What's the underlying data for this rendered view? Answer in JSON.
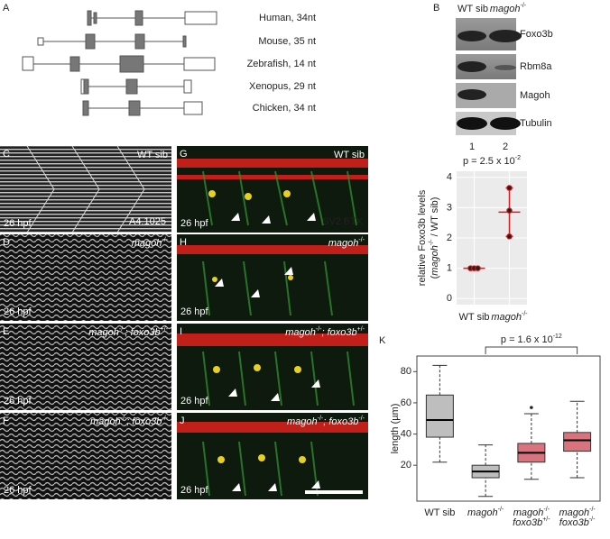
{
  "letters": [
    "A",
    "B",
    "C",
    "D",
    "E",
    "F",
    "G",
    "H",
    "I",
    "J",
    "K"
  ],
  "gene_structures": {
    "labels": [
      "Human, 34nt",
      "Mouse, 35 nt",
      "Zebrafish, 14 nt",
      "Xenopus, 29 nt",
      "Chicken, 34 nt"
    ]
  },
  "western_blot": {
    "lanes": [
      "WT sib",
      [
        {
          "i": "magoh"
        },
        {
          "sup": "-/-"
        }
      ]
    ],
    "bands": [
      "Foxo3b",
      "Rbm8a",
      "Magoh",
      "Tubulin"
    ],
    "lane_numbers": [
      1,
      2
    ]
  },
  "images": [
    {
      "genotype": "WT sib",
      "stage": "26 hpf",
      "stain": "A4.1025"
    },
    {
      "genotype": [
        {
          "i": "magoh"
        },
        {
          "sup": "-/-"
        }
      ],
      "stage": "26 hpf"
    },
    {
      "genotype": [
        {
          "i": "magoh"
        },
        {
          "sup": "-/-"
        },
        {
          "i": "; foxo3b"
        },
        {
          "sup": "+/-"
        }
      ],
      "stage": "26 hpf"
    },
    {
      "genotype": [
        {
          "i": "magoh"
        },
        {
          "sup": "-/-"
        },
        {
          "i": "; foxo3b"
        },
        {
          "sup": "-/-"
        }
      ],
      "stage": "26 hpf"
    },
    {
      "genotype": "WT sib",
      "stage": "26 hpf",
      "stain": [
        "SV2",
        "BTX"
      ]
    },
    {
      "genotype": [
        {
          "i": "magoh"
        },
        {
          "sup": "-/-"
        }
      ],
      "stage": "26 hpf"
    },
    {
      "genotype": [
        {
          "i": "magoh"
        },
        {
          "sup": "-/-"
        },
        {
          "i": "; foxo3b"
        },
        {
          "sup": "+/-"
        }
      ],
      "stage": "26 hpf"
    },
    {
      "genotype": [
        {
          "i": "magoh"
        },
        {
          "sup": "-/-"
        },
        {
          "i": "; foxo3b"
        },
        {
          "sup": "-/-"
        }
      ],
      "stage": "26 hpf"
    }
  ],
  "chart_data": [
    {
      "type": "dot",
      "title": [
        "p = 2.5 x 10",
        {
          "sup": "-2"
        }
      ],
      "y_label": [
        [
          "relative Foxo3b levels"
        ],
        [
          "(",
          {
            "i": "magoh"
          },
          {
            "sup": "-/-"
          },
          " / WT sib)"
        ]
      ],
      "categories": [
        "WT sib",
        [
          {
            "i": "magoh"
          },
          {
            "sup": "-/-"
          }
        ]
      ],
      "values": [
        [
          1,
          1,
          1
        ],
        [
          3.65,
          2.9,
          2.05
        ]
      ],
      "mean": [
        1,
        2.85
      ],
      "error": [
        0,
        0.8
      ],
      "color": "#e41a1c",
      "ylim": [
        -0.2,
        4.2
      ],
      "yticks": [
        0,
        1,
        2,
        3,
        4
      ],
      "grid": true
    },
    {
      "type": "box",
      "title": [
        "p = 1.6 x 10",
        {
          "sup": "-12"
        }
      ],
      "y_label": "length (µm)",
      "categories": [
        "WT sib",
        [
          {
            "i": "magoh"
          },
          {
            "sup": "-/-"
          }
        ],
        [
          [
            {
              "i": "magoh"
            },
            {
              "sup": "-/-"
            }
          ],
          [
            {
              "i": "foxo3b"
            },
            {
              "sup": "+/-"
            }
          ]
        ],
        [
          [
            {
              "i": "magoh"
            },
            {
              "sup": "-/-"
            }
          ],
          [
            {
              "i": "foxo3b"
            },
            {
              "sup": "-/-"
            }
          ]
        ]
      ],
      "whislo": [
        22,
        0,
        11,
        12
      ],
      "q1": [
        38,
        12,
        22,
        29
      ],
      "med": [
        49,
        16,
        28,
        36
      ],
      "q3": [
        65,
        20,
        34,
        41
      ],
      "whishi": [
        84,
        33,
        53,
        61
      ],
      "fliers": [
        [],
        [],
        [
          57
        ],
        []
      ],
      "colors": [
        "#bebebe",
        "#bebebe",
        "#d9737e",
        "#d9737e"
      ],
      "ylim": [
        -3,
        90
      ],
      "yticks": [
        20,
        40,
        60,
        80
      ]
    }
  ]
}
